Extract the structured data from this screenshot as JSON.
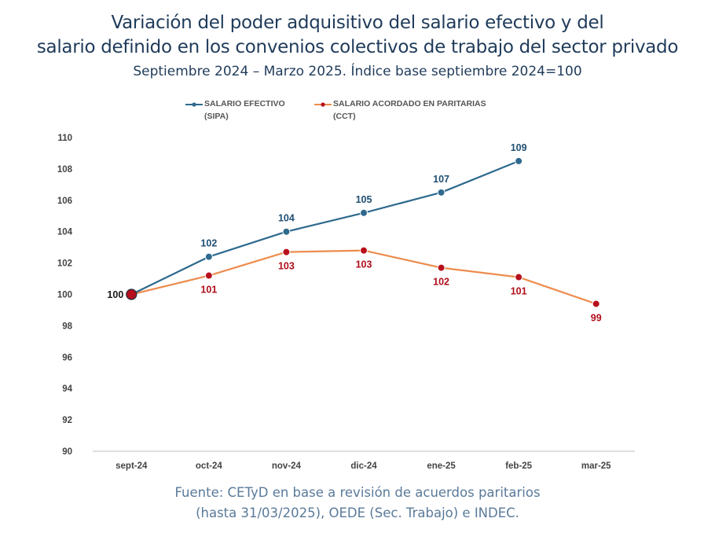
{
  "header": {
    "title_line1": "Variación del poder adquisitivo del salario efectivo y del",
    "title_line2": "salario definido en los convenios colectivos de trabajo del sector privado",
    "subtitle": "Septiembre 2024 – Marzo 2025. Índice base septiembre 2024=100"
  },
  "legend": {
    "series1_line1": "SALARIO EFECTIVO",
    "series1_line2": "(SIPA)",
    "series2_line1": "SALARIO ACORDADO EN PARITARIAS",
    "series2_line2": "(CCT)"
  },
  "source": {
    "line1": "Fuente: CETyD en base a revisión de acuerdos paritarios",
    "line2": "(hasta 31/03/2025), OEDE (Sec. Trabajo) e INDEC."
  },
  "chart_data": {
    "type": "line",
    "categories": [
      "sept-24",
      "oct-24",
      "nov-24",
      "dic-24",
      "ene-25",
      "feb-25",
      "mar-25"
    ],
    "ylim": [
      90,
      110
    ],
    "yticks": [
      90,
      92,
      94,
      96,
      98,
      100,
      102,
      104,
      106,
      108,
      110
    ],
    "grid": false,
    "legend_position": "top-center",
    "series": [
      {
        "name": "SALARIO EFECTIVO (SIPA)",
        "color": "#2e6a8e",
        "values": [
          100,
          102.4,
          104.0,
          105.2,
          106.5,
          108.5,
          null
        ],
        "labels": [
          "100",
          "102",
          "104",
          "105",
          "107",
          "109",
          null
        ]
      },
      {
        "name": "SALARIO ACORDADO EN PARITARIAS (CCT)",
        "color": "#ed8c4e",
        "marker_color": "#b80f1c",
        "values": [
          100,
          101.2,
          102.7,
          102.8,
          101.7,
          101.1,
          99.4
        ],
        "labels": [
          null,
          "101",
          "103",
          "103",
          "102",
          "101",
          "99"
        ]
      }
    ]
  }
}
